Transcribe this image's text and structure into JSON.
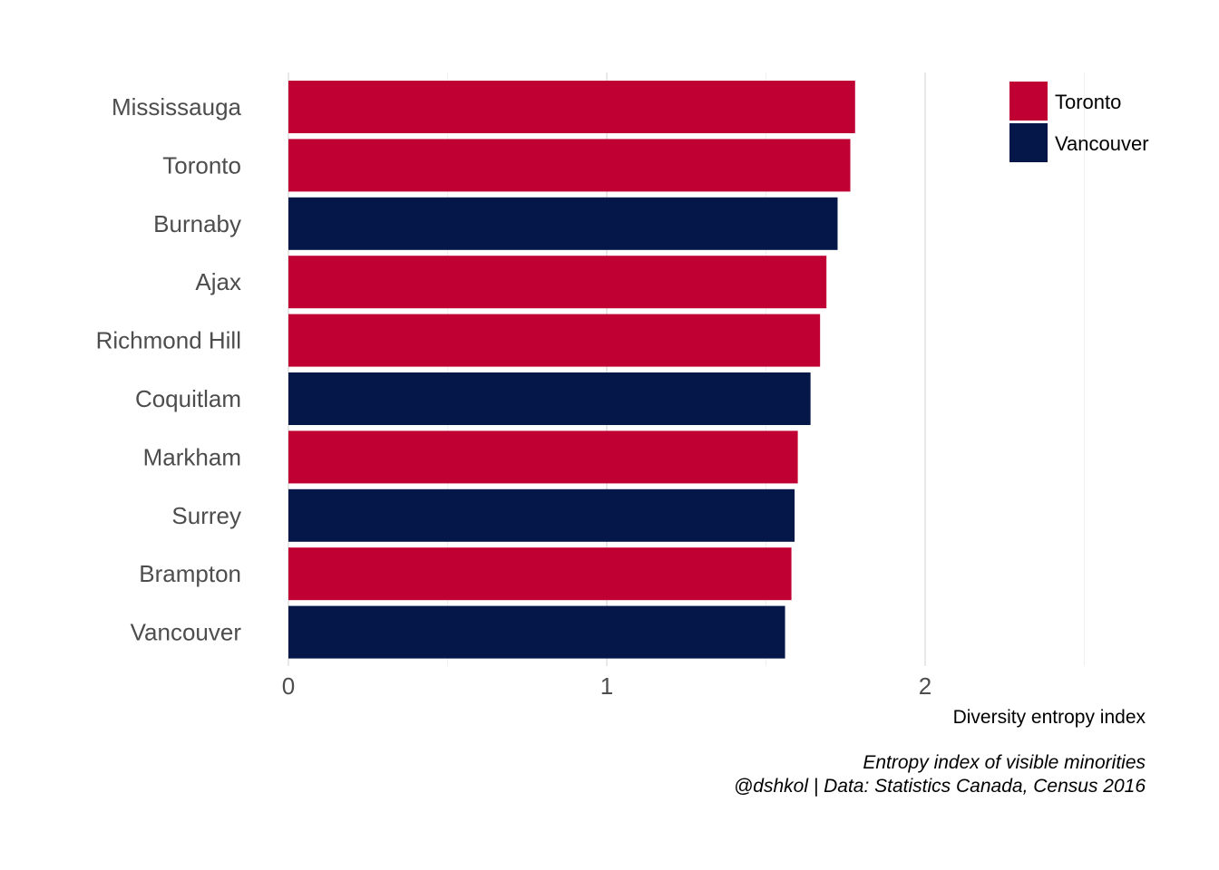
{
  "chart_data": {
    "type": "bar",
    "orientation": "horizontal",
    "categories": [
      "Mississauga",
      "Toronto",
      "Burnaby",
      "Ajax",
      "Richmond Hill",
      "Coquitlam",
      "Markham",
      "Surrey",
      "Brampton",
      "Vancouver"
    ],
    "values": [
      1.78,
      1.765,
      1.725,
      1.69,
      1.67,
      1.64,
      1.6,
      1.59,
      1.58,
      1.56
    ],
    "groups": [
      "Toronto",
      "Toronto",
      "Vancouver",
      "Toronto",
      "Toronto",
      "Vancouver",
      "Toronto",
      "Vancouver",
      "Toronto",
      "Vancouver"
    ],
    "legend": {
      "position": "top-right",
      "entries": [
        {
          "name": "Toronto",
          "color": "#c00032"
        },
        {
          "name": "Vancouver",
          "color": "#041748"
        }
      ]
    },
    "xlabel": "Diversity entropy index",
    "ylabel": "",
    "xlim": [
      0,
      2.5
    ],
    "xticks": [
      0,
      1,
      2
    ],
    "grid": "vertical",
    "caption": [
      "Entropy index of visible minorities",
      "@dshkol | Data: Statistics Canada, Census 2016"
    ]
  }
}
